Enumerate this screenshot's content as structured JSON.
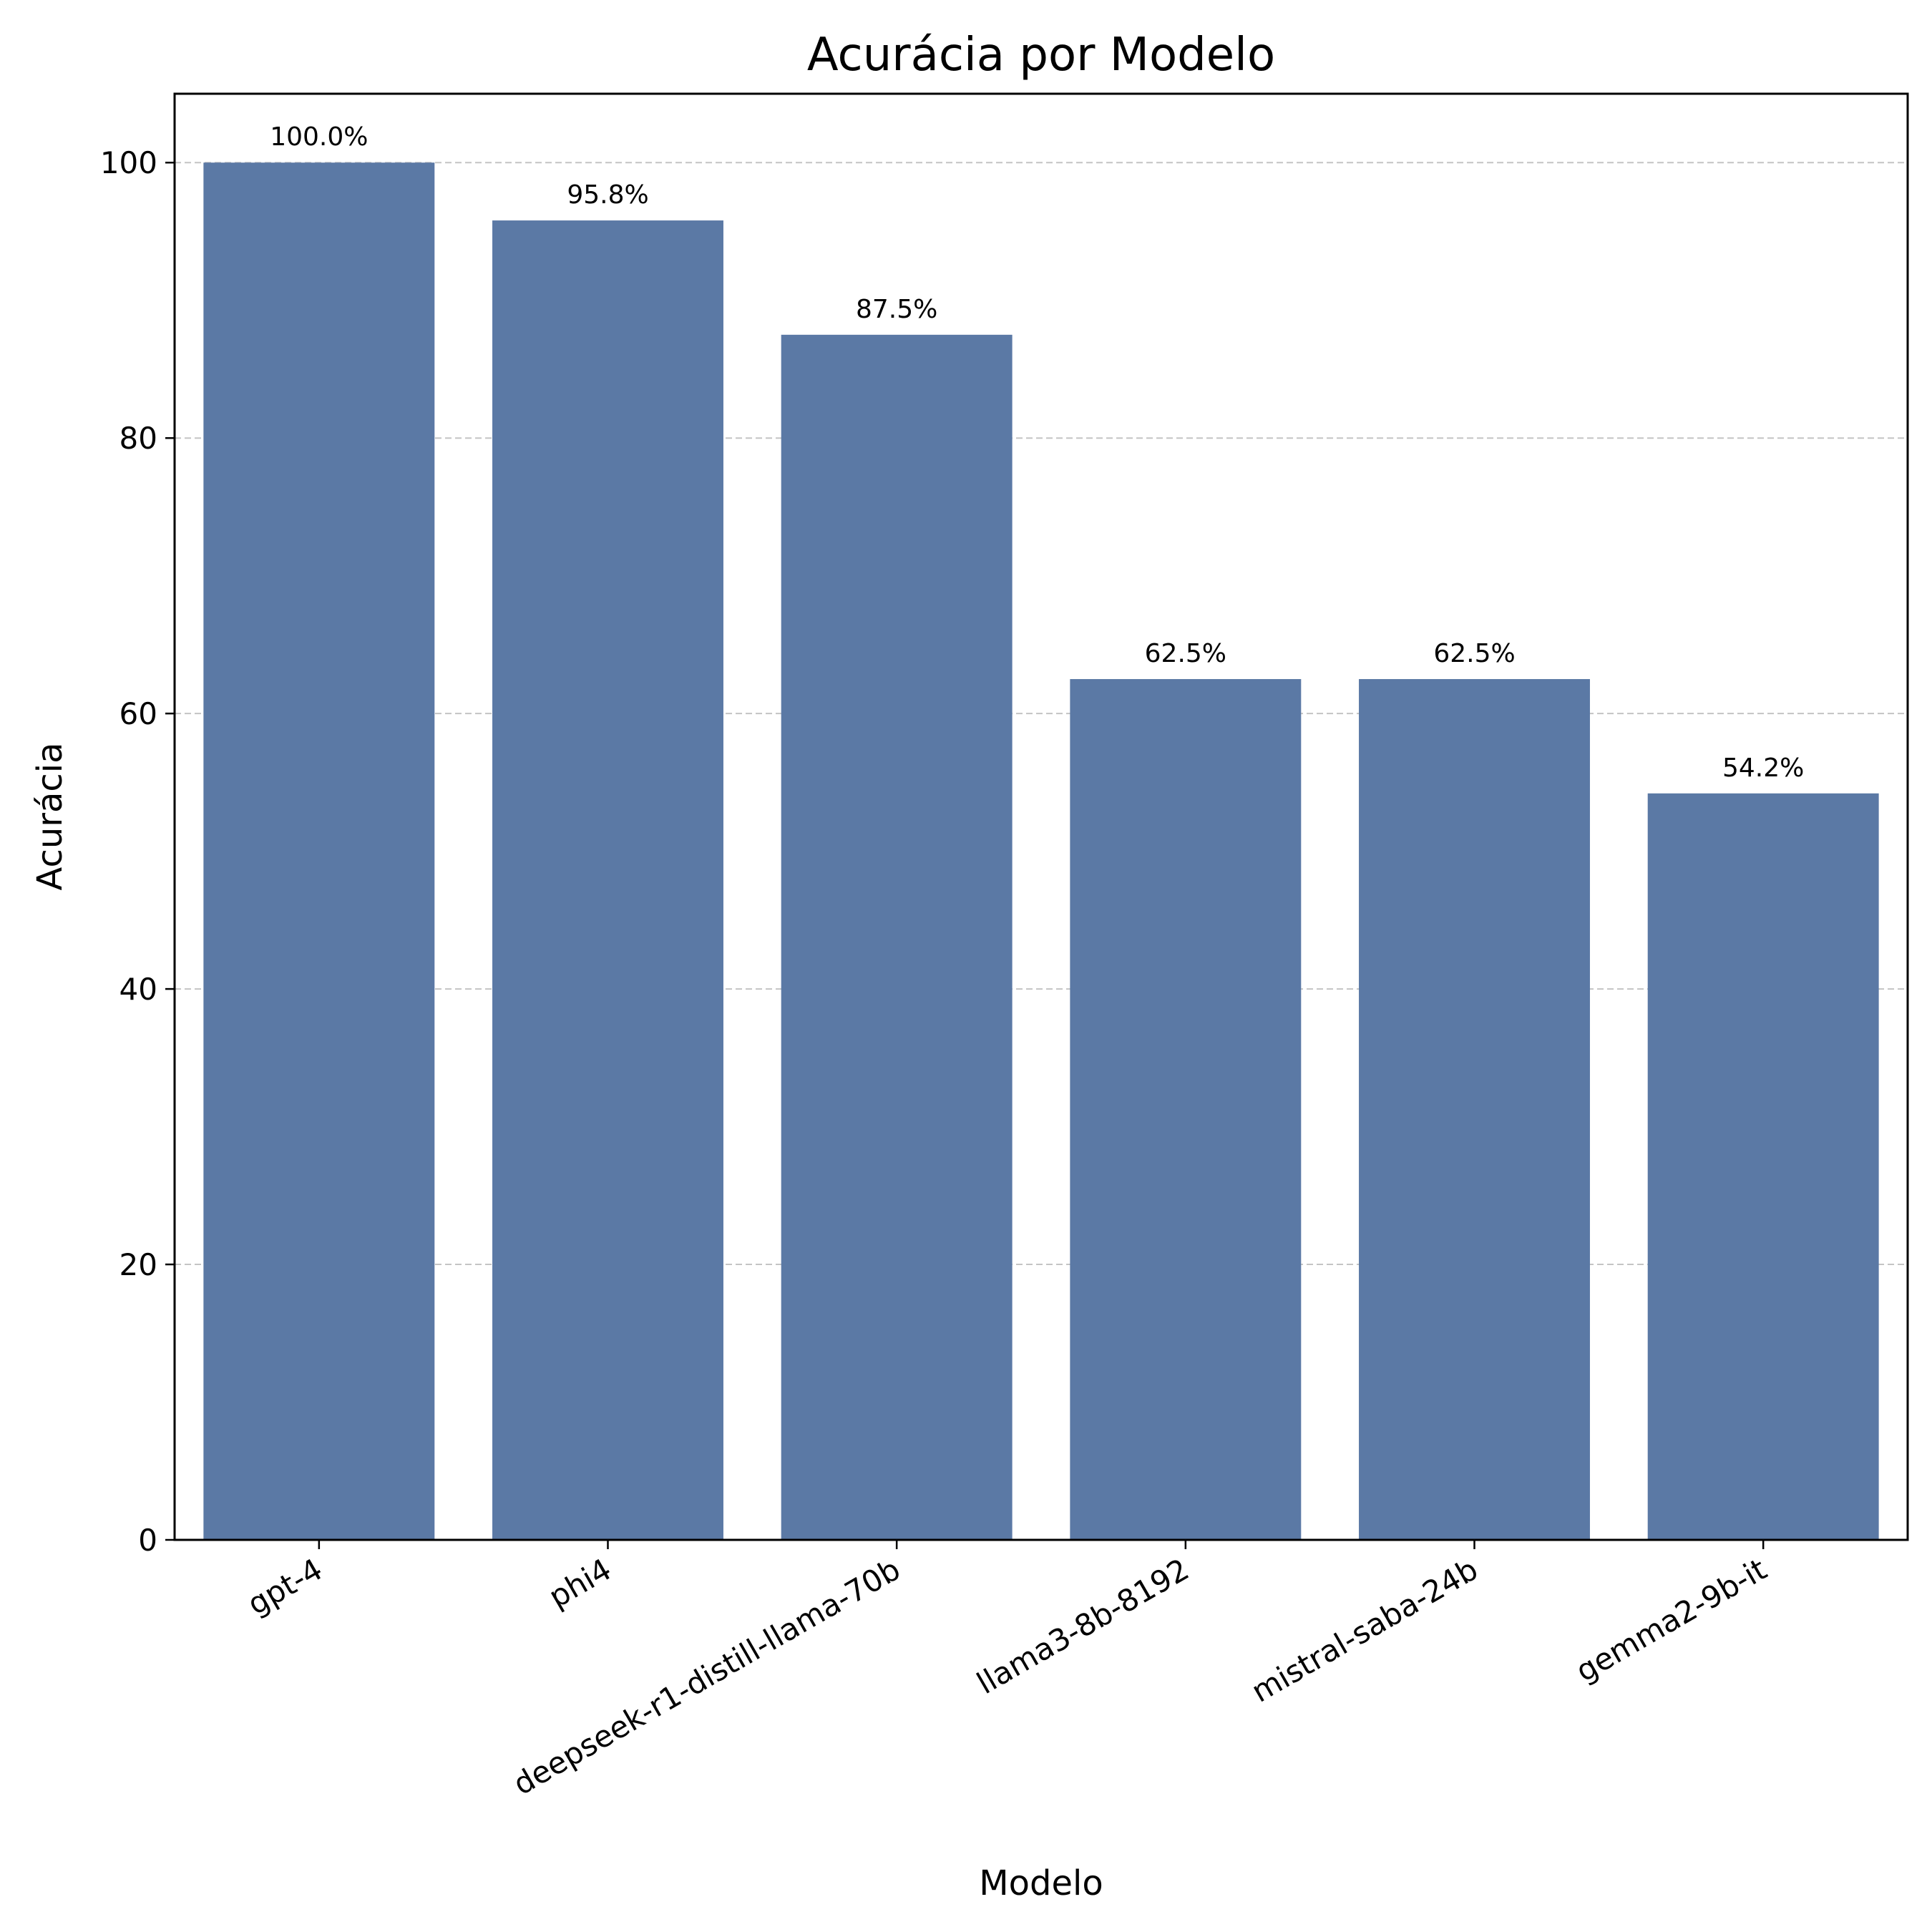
{
  "chart_data": {
    "type": "bar",
    "title": "Acurácia por Modelo",
    "xlabel": "Modelo",
    "ylabel": "Acurácia",
    "categories": [
      "gpt-4",
      "phi4",
      "deepseek-r1-distill-llama-70b",
      "llama3-8b-8192",
      "mistral-saba-24b",
      "gemma2-9b-it"
    ],
    "values": [
      100.0,
      95.8,
      87.5,
      62.5,
      62.5,
      54.2
    ],
    "value_labels": [
      "100.0%",
      "95.8%",
      "87.5%",
      "62.5%",
      "62.5%",
      "54.2%"
    ],
    "ylim": [
      0,
      105
    ],
    "yticks": [
      0,
      20,
      40,
      60,
      80,
      100
    ],
    "grid": "y-dashed",
    "bar_color": "#5b79a5",
    "grid_color": "#c4c4c4",
    "xtick_rotation": 30
  }
}
